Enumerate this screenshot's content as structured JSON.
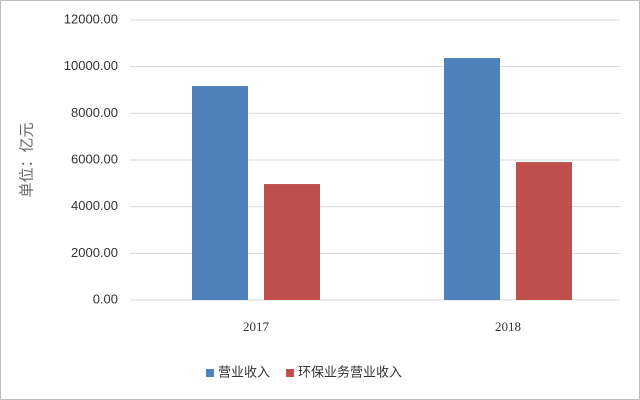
{
  "chart_data": {
    "type": "bar",
    "y_label": "单位：亿元",
    "categories": [
      "2017",
      "2018"
    ],
    "series": [
      {
        "name": "营业收入",
        "color": "#4f81bd",
        "values": [
          9170,
          10370
        ]
      },
      {
        "name": "环保业务营业收入",
        "color": "#c0504d",
        "values": [
          4970,
          5910
        ]
      }
    ],
    "ylim": [
      0,
      12000
    ],
    "yticks": [
      {
        "value": 0,
        "label": "0.00"
      },
      {
        "value": 2000,
        "label": "2000.00"
      },
      {
        "value": 4000,
        "label": "4000.00"
      },
      {
        "value": 6000,
        "label": "6000.00"
      },
      {
        "value": 8000,
        "label": "8000.00"
      },
      {
        "value": 10000,
        "label": "10000.00"
      },
      {
        "value": 12000,
        "label": "12000.00"
      }
    ],
    "grid": true,
    "legend": "bottom"
  }
}
